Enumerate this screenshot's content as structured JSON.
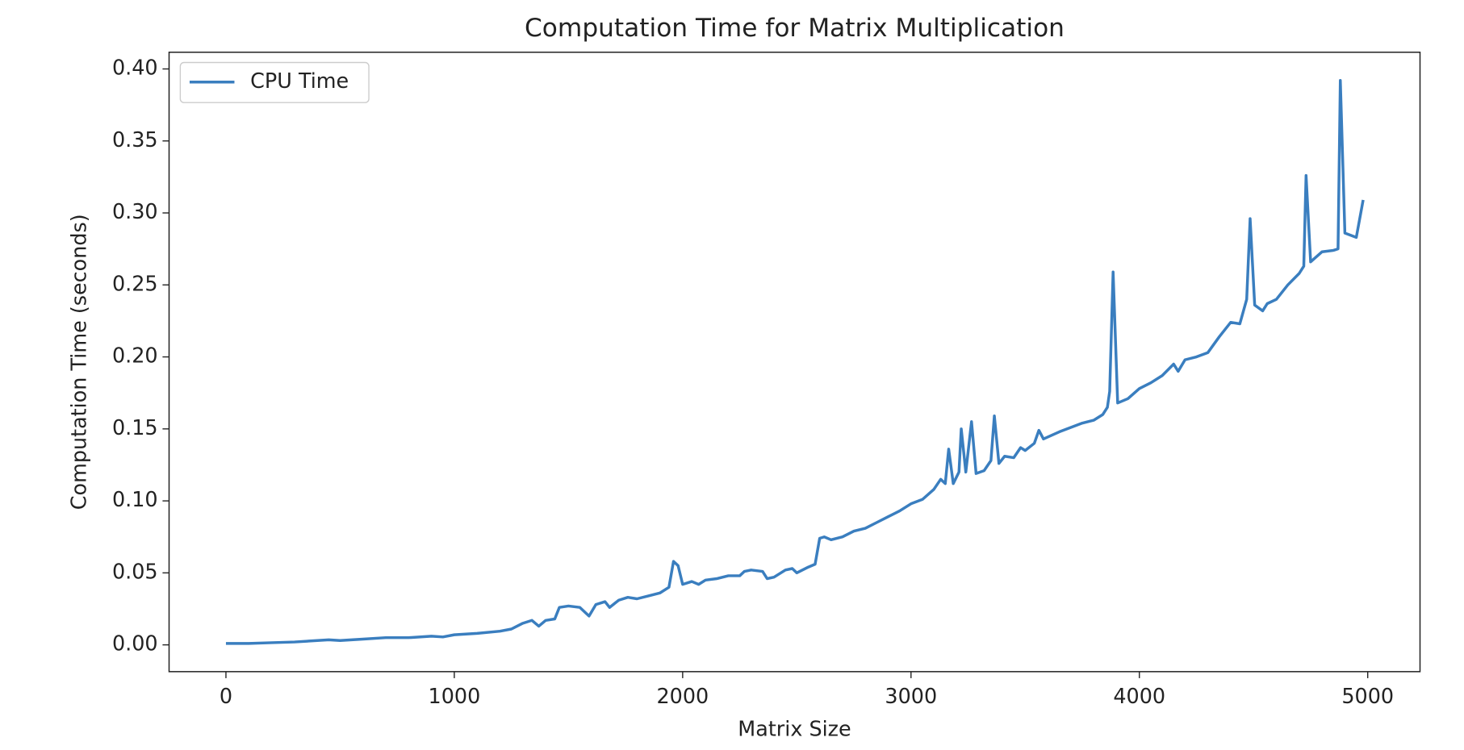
{
  "chart_data": {
    "type": "line",
    "title": "Computation Time for Matrix Multiplication",
    "x_label": "Matrix Size",
    "y_label": "Computation Time (seconds)",
    "xlim": [
      -249,
      5229
    ],
    "ylim": [
      -0.0186,
      0.4116
    ],
    "xticks": [
      0,
      1000,
      2000,
      3000,
      4000,
      5000
    ],
    "yticks": [
      {
        "value": 0,
        "label": "0.00"
      },
      {
        "value": 0.05,
        "label": "0.05"
      },
      {
        "value": 0.1,
        "label": "0.10"
      },
      {
        "value": 0.15,
        "label": "0.15"
      },
      {
        "value": 0.2,
        "label": "0.20"
      },
      {
        "value": 0.25,
        "label": "0.25"
      },
      {
        "value": 0.3,
        "label": "0.30"
      },
      {
        "value": 0.35,
        "label": "0.35"
      },
      {
        "value": 0.4,
        "label": "0.40"
      }
    ],
    "legend": "upper left",
    "x": [
      0,
      100,
      200,
      300,
      400,
      450,
      500,
      600,
      700,
      800,
      900,
      950,
      1000,
      1100,
      1200,
      1250,
      1300,
      1340,
      1370,
      1400,
      1440,
      1460,
      1500,
      1550,
      1590,
      1620,
      1660,
      1680,
      1720,
      1760,
      1800,
      1850,
      1900,
      1940,
      1960,
      1980,
      2000,
      2040,
      2070,
      2100,
      2150,
      2200,
      2250,
      2270,
      2300,
      2350,
      2370,
      2400,
      2450,
      2480,
      2500,
      2550,
      2580,
      2600,
      2620,
      2650,
      2700,
      2750,
      2800,
      2850,
      2900,
      2950,
      3000,
      3050,
      3100,
      3130,
      3150,
      3165,
      3185,
      3210,
      3220,
      3240,
      3265,
      3285,
      3320,
      3350,
      3365,
      3385,
      3410,
      3450,
      3480,
      3500,
      3540,
      3560,
      3580,
      3650,
      3700,
      3750,
      3800,
      3840,
      3860,
      3870,
      3885,
      3905,
      3950,
      4000,
      4050,
      4100,
      4150,
      4170,
      4200,
      4250,
      4300,
      4350,
      4400,
      4440,
      4470,
      4485,
      4505,
      4540,
      4560,
      4600,
      4650,
      4700,
      4720,
      4730,
      4750,
      4800,
      4850,
      4870,
      4880,
      4900,
      4950,
      4980
    ],
    "series": [
      {
        "name": "CPU Time",
        "color": "#3a7ebf",
        "values": [
          0.001,
          0.001,
          0.0015,
          0.002,
          0.003,
          0.0035,
          0.003,
          0.004,
          0.005,
          0.005,
          0.006,
          0.0055,
          0.007,
          0.008,
          0.0095,
          0.011,
          0.015,
          0.017,
          0.013,
          0.017,
          0.018,
          0.026,
          0.027,
          0.026,
          0.02,
          0.028,
          0.03,
          0.026,
          0.031,
          0.033,
          0.032,
          0.034,
          0.036,
          0.04,
          0.058,
          0.055,
          0.042,
          0.044,
          0.042,
          0.045,
          0.046,
          0.048,
          0.048,
          0.051,
          0.052,
          0.051,
          0.046,
          0.047,
          0.052,
          0.053,
          0.05,
          0.054,
          0.056,
          0.074,
          0.075,
          0.073,
          0.075,
          0.079,
          0.081,
          0.085,
          0.089,
          0.093,
          0.098,
          0.101,
          0.108,
          0.115,
          0.112,
          0.136,
          0.112,
          0.12,
          0.15,
          0.12,
          0.155,
          0.119,
          0.121,
          0.128,
          0.159,
          0.126,
          0.131,
          0.13,
          0.137,
          0.135,
          0.14,
          0.149,
          0.143,
          0.148,
          0.151,
          0.154,
          0.156,
          0.16,
          0.165,
          0.176,
          0.259,
          0.168,
          0.171,
          0.178,
          0.182,
          0.187,
          0.195,
          0.19,
          0.198,
          0.2,
          0.203,
          0.214,
          0.224,
          0.223,
          0.24,
          0.296,
          0.236,
          0.232,
          0.237,
          0.24,
          0.25,
          0.258,
          0.263,
          0.326,
          0.266,
          0.273,
          0.274,
          0.275,
          0.392,
          0.286,
          0.283,
          0.309
        ]
      }
    ]
  }
}
